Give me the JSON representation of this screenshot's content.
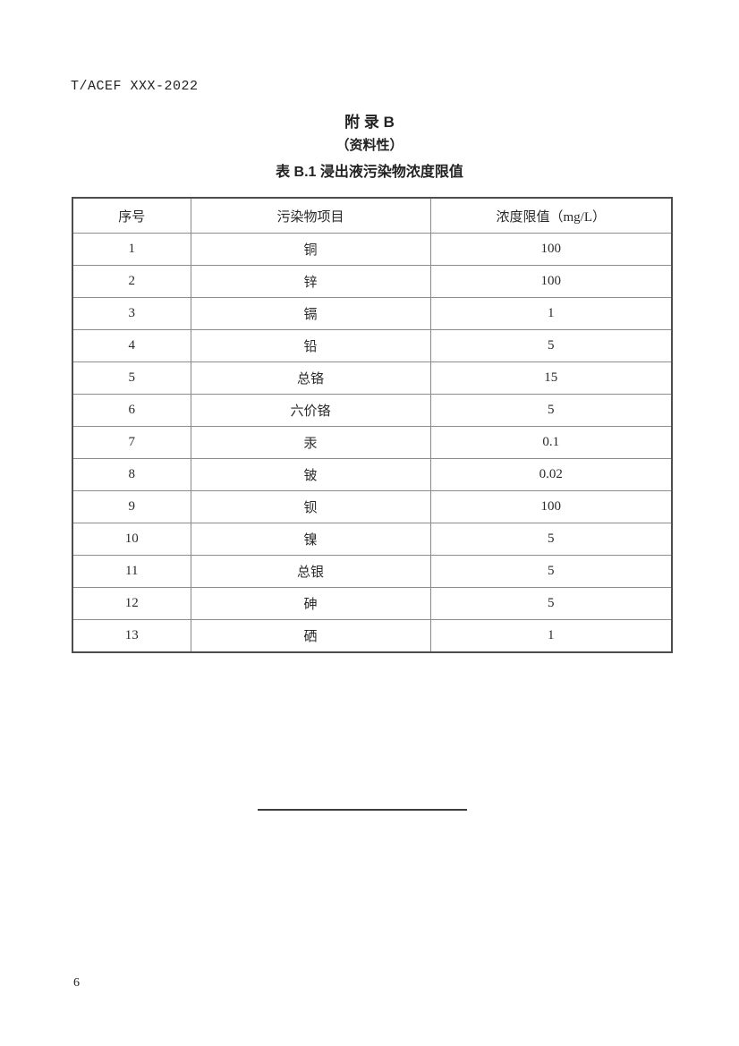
{
  "page": {
    "header": "T/ACEF XXX-2022",
    "page_number": "6"
  },
  "appendix": {
    "title": "附 录 B",
    "subtitle": "（资料性）",
    "table_caption": "表 B.1 浸出液污染物浓度限值"
  },
  "table": {
    "columns": [
      "序号",
      "污染物项目",
      "浓度限值（mg/L）"
    ],
    "rows": [
      [
        "1",
        "铜",
        "100"
      ],
      [
        "2",
        "锌",
        "100"
      ],
      [
        "3",
        "镉",
        "1"
      ],
      [
        "4",
        "铅",
        "5"
      ],
      [
        "5",
        "总铬",
        "15"
      ],
      [
        "6",
        "六价铬",
        "5"
      ],
      [
        "7",
        "汞",
        "0.1"
      ],
      [
        "8",
        "铍",
        "0.02"
      ],
      [
        "9",
        "钡",
        "100"
      ],
      [
        "10",
        "镍",
        "5"
      ],
      [
        "11",
        "总银",
        "5"
      ],
      [
        "12",
        "砷",
        "5"
      ],
      [
        "13",
        "硒",
        "1"
      ]
    ]
  }
}
